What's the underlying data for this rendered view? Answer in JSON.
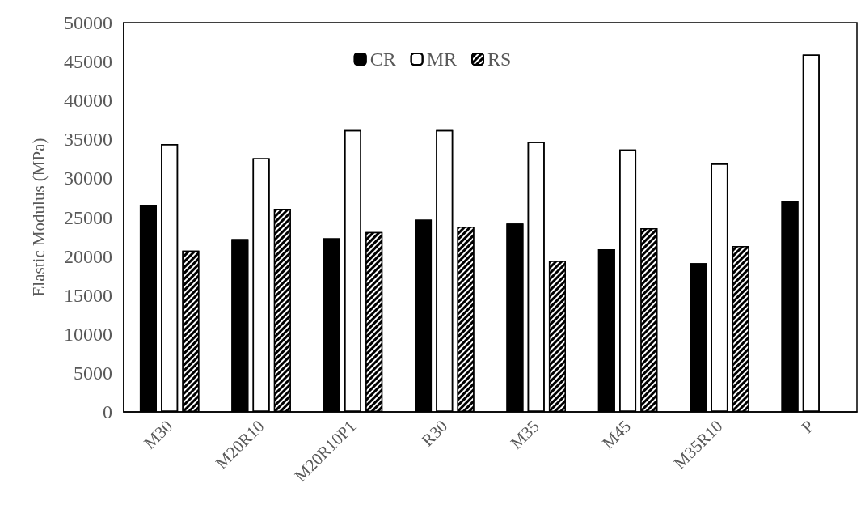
{
  "chart_data": {
    "type": "bar",
    "ylabel": "Elastic Modulus (MPa)",
    "categories": [
      "M30",
      "M20R10",
      "M20R10P1",
      "R30",
      "M35",
      "M45",
      "M35R10",
      "P"
    ],
    "series": [
      {
        "name": "CR",
        "color": "#000000",
        "values": [
          26600,
          22200,
          22300,
          24700,
          24200,
          20900,
          19100,
          27100
        ]
      },
      {
        "name": "MR",
        "color": "#ffffff",
        "values": [
          34400,
          32600,
          36200,
          36200,
          34700,
          33700,
          31900,
          45900
        ]
      },
      {
        "name": "RS",
        "color": "#000000",
        "values": [
          20700,
          26100,
          23100,
          23800,
          19400,
          23600,
          21300,
          null
        ]
      }
    ],
    "ylim": [
      0,
      50000
    ],
    "yticks": [
      0,
      5000,
      10000,
      15000,
      20000,
      25000,
      30000,
      35000,
      40000,
      45000,
      50000
    ],
    "grid": false,
    "legend": "top"
  }
}
